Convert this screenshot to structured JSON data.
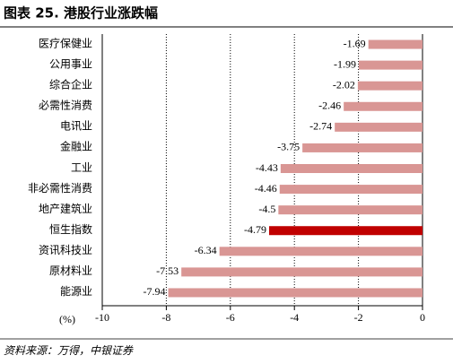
{
  "chart_data": {
    "type": "barh",
    "title": "图表 25. 港股行业涨跌幅",
    "categories": [
      "医疗保健业",
      "公用事业",
      "综合企业",
      "必需性消费",
      "电讯业",
      "金融业",
      "工业",
      "非必需性消费",
      "地产建筑业",
      "恒生指数",
      "资讯科技业",
      "原材料业",
      "能源业"
    ],
    "values": [
      -1.69,
      -1.99,
      -2.02,
      -2.46,
      -2.74,
      -3.75,
      -4.43,
      -4.46,
      -4.5,
      -4.79,
      -6.34,
      -7.53,
      -7.94
    ],
    "colors": [
      "#d99694",
      "#d99694",
      "#d99694",
      "#d99694",
      "#d99694",
      "#d99694",
      "#d99694",
      "#d99694",
      "#d99694",
      "#c00000",
      "#d99694",
      "#d99694",
      "#d99694"
    ],
    "xlim": [
      -10,
      0
    ],
    "xticks": [
      -10,
      -8,
      -6,
      -4,
      -2,
      0
    ],
    "xlabel": "(%)",
    "grid": true,
    "source": "资料来源：万得，中银证券"
  }
}
